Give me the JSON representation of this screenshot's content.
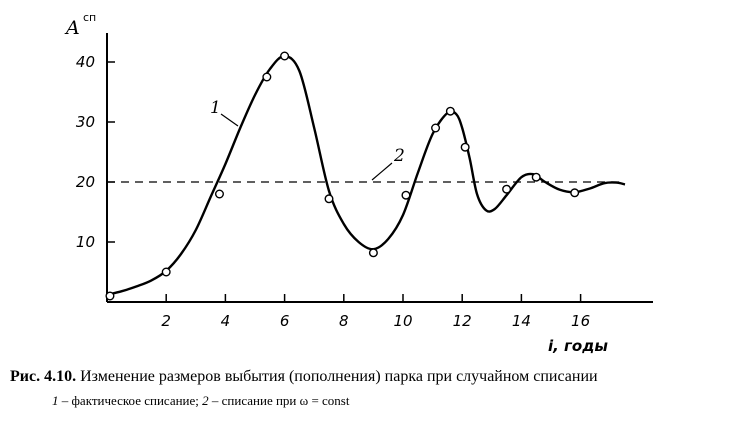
{
  "chart_data": {
    "type": "line",
    "ylabel": "A",
    "ylabel_sup": "сп",
    "xlabel": "i, годы",
    "xlim": [
      0,
      18
    ],
    "ylim": [
      0,
      45
    ],
    "xticks": [
      2,
      4,
      6,
      8,
      10,
      12,
      14,
      16
    ],
    "yticks": [
      10,
      20,
      30,
      40
    ],
    "grid": false,
    "series": [
      {
        "name": "1",
        "style": "solid-curve",
        "curve": [
          {
            "x": 0.0,
            "y": 1.2
          },
          {
            "x": 0.5,
            "y": 1.8
          },
          {
            "x": 1.0,
            "y": 2.6
          },
          {
            "x": 1.5,
            "y": 3.6
          },
          {
            "x": 2.0,
            "y": 5.2
          },
          {
            "x": 2.5,
            "y": 8.0
          },
          {
            "x": 3.0,
            "y": 12.0
          },
          {
            "x": 3.5,
            "y": 17.5
          },
          {
            "x": 4.0,
            "y": 23.0
          },
          {
            "x": 4.5,
            "y": 29.0
          },
          {
            "x": 5.0,
            "y": 34.5
          },
          {
            "x": 5.5,
            "y": 38.8
          },
          {
            "x": 6.0,
            "y": 41.0
          },
          {
            "x": 6.5,
            "y": 38.5
          },
          {
            "x": 7.0,
            "y": 29.0
          },
          {
            "x": 7.5,
            "y": 18.5
          },
          {
            "x": 8.0,
            "y": 13.0
          },
          {
            "x": 8.5,
            "y": 10.0
          },
          {
            "x": 9.0,
            "y": 8.8
          },
          {
            "x": 9.5,
            "y": 10.5
          },
          {
            "x": 10.0,
            "y": 14.5
          },
          {
            "x": 10.5,
            "y": 21.5
          },
          {
            "x": 11.0,
            "y": 28.0
          },
          {
            "x": 11.5,
            "y": 31.5
          },
          {
            "x": 11.8,
            "y": 31.3
          },
          {
            "x": 12.0,
            "y": 29.0
          },
          {
            "x": 12.25,
            "y": 24.0
          },
          {
            "x": 12.5,
            "y": 18.0
          },
          {
            "x": 12.8,
            "y": 15.3
          },
          {
            "x": 13.1,
            "y": 15.5
          },
          {
            "x": 13.5,
            "y": 17.8
          },
          {
            "x": 14.0,
            "y": 20.8
          },
          {
            "x": 14.4,
            "y": 21.3
          },
          {
            "x": 14.8,
            "y": 20.0
          },
          {
            "x": 15.3,
            "y": 18.7
          },
          {
            "x": 15.8,
            "y": 18.3
          },
          {
            "x": 16.3,
            "y": 18.9
          },
          {
            "x": 16.8,
            "y": 19.8
          },
          {
            "x": 17.2,
            "y": 19.9
          },
          {
            "x": 17.5,
            "y": 19.6
          }
        ],
        "points": [
          {
            "x": 0.1,
            "y": 1.0
          },
          {
            "x": 2.0,
            "y": 5.0
          },
          {
            "x": 3.8,
            "y": 18.0
          },
          {
            "x": 5.4,
            "y": 37.5
          },
          {
            "x": 6.0,
            "y": 41.0
          },
          {
            "x": 7.5,
            "y": 17.2
          },
          {
            "x": 9.0,
            "y": 8.2
          },
          {
            "x": 10.1,
            "y": 17.8
          },
          {
            "x": 11.1,
            "y": 29.0
          },
          {
            "x": 11.6,
            "y": 31.8
          },
          {
            "x": 12.1,
            "y": 25.8
          },
          {
            "x": 13.5,
            "y": 18.8
          },
          {
            "x": 14.5,
            "y": 20.8
          },
          {
            "x": 15.8,
            "y": 18.2
          }
        ]
      },
      {
        "name": "2",
        "style": "dashed-line",
        "y": 20,
        "x_range": [
          0,
          17.5
        ]
      }
    ]
  },
  "caption": {
    "number": "Рис. 4.10.",
    "text": " Изменение размеров выбытия (пополнения) парка при случайном списании"
  },
  "legend": {
    "item1_num": "1",
    "item1_text": " – фактическое списание; ",
    "item2_num": "2",
    "item2_text": " – списание при ω = const"
  }
}
